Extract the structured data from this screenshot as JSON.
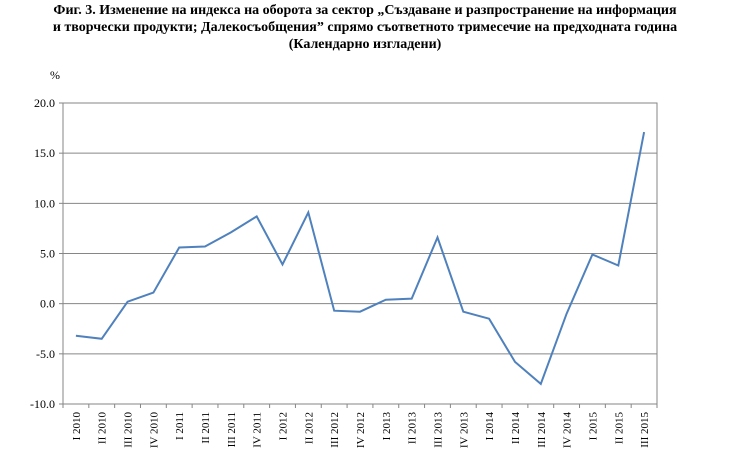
{
  "title_lines": [
    "Фиг. 3. Изменение на индекса на оборота за сектор „Създаване и разпространение на информация",
    "и творчески продукти; Далекосъобщения” спрямо съответното тримесечие на предходната година",
    "(Календарно изгладени)"
  ],
  "chart_data": {
    "type": "line",
    "title": "Фиг. 3. Изменение на индекса на оборота за сектор „Създаване и разпространение на информация и творчески продукти; Далекосъобщения” спрямо съответното тримесечие на предходната година (Календарно изгладени)",
    "ylabel": "%",
    "xlabel": "",
    "ylim": [
      -10,
      20
    ],
    "yticks": [
      "20.0",
      "15.0",
      "10.0",
      "5.0",
      "0.0",
      "-5.0",
      "-10.0"
    ],
    "grid": true,
    "legend": "none",
    "categories": [
      "I 2010",
      "II 2010",
      "III 2010",
      "IV 2010",
      "I 2011",
      "II 2011",
      "III 2011",
      "IV 2011",
      "I 2012",
      "II 2012",
      "III 2012",
      "IV 2012",
      "I 2013",
      "II 2013",
      "III 2013",
      "IV 2013",
      "I 2014",
      "II 2014",
      "III 2014",
      "IV 2014",
      "I 2015",
      "II 2015",
      "III 2015"
    ],
    "series": [
      {
        "values": [
          -3.2,
          -3.5,
          0.2,
          1.1,
          5.6,
          5.7,
          7.1,
          8.7,
          3.9,
          9.1,
          -0.7,
          -0.8,
          0.4,
          0.5,
          6.6,
          -0.8,
          -1.5,
          -5.8,
          -8.0,
          -1.0,
          4.9,
          3.8,
          17.1
        ],
        "color": "#4f81bd"
      }
    ]
  }
}
